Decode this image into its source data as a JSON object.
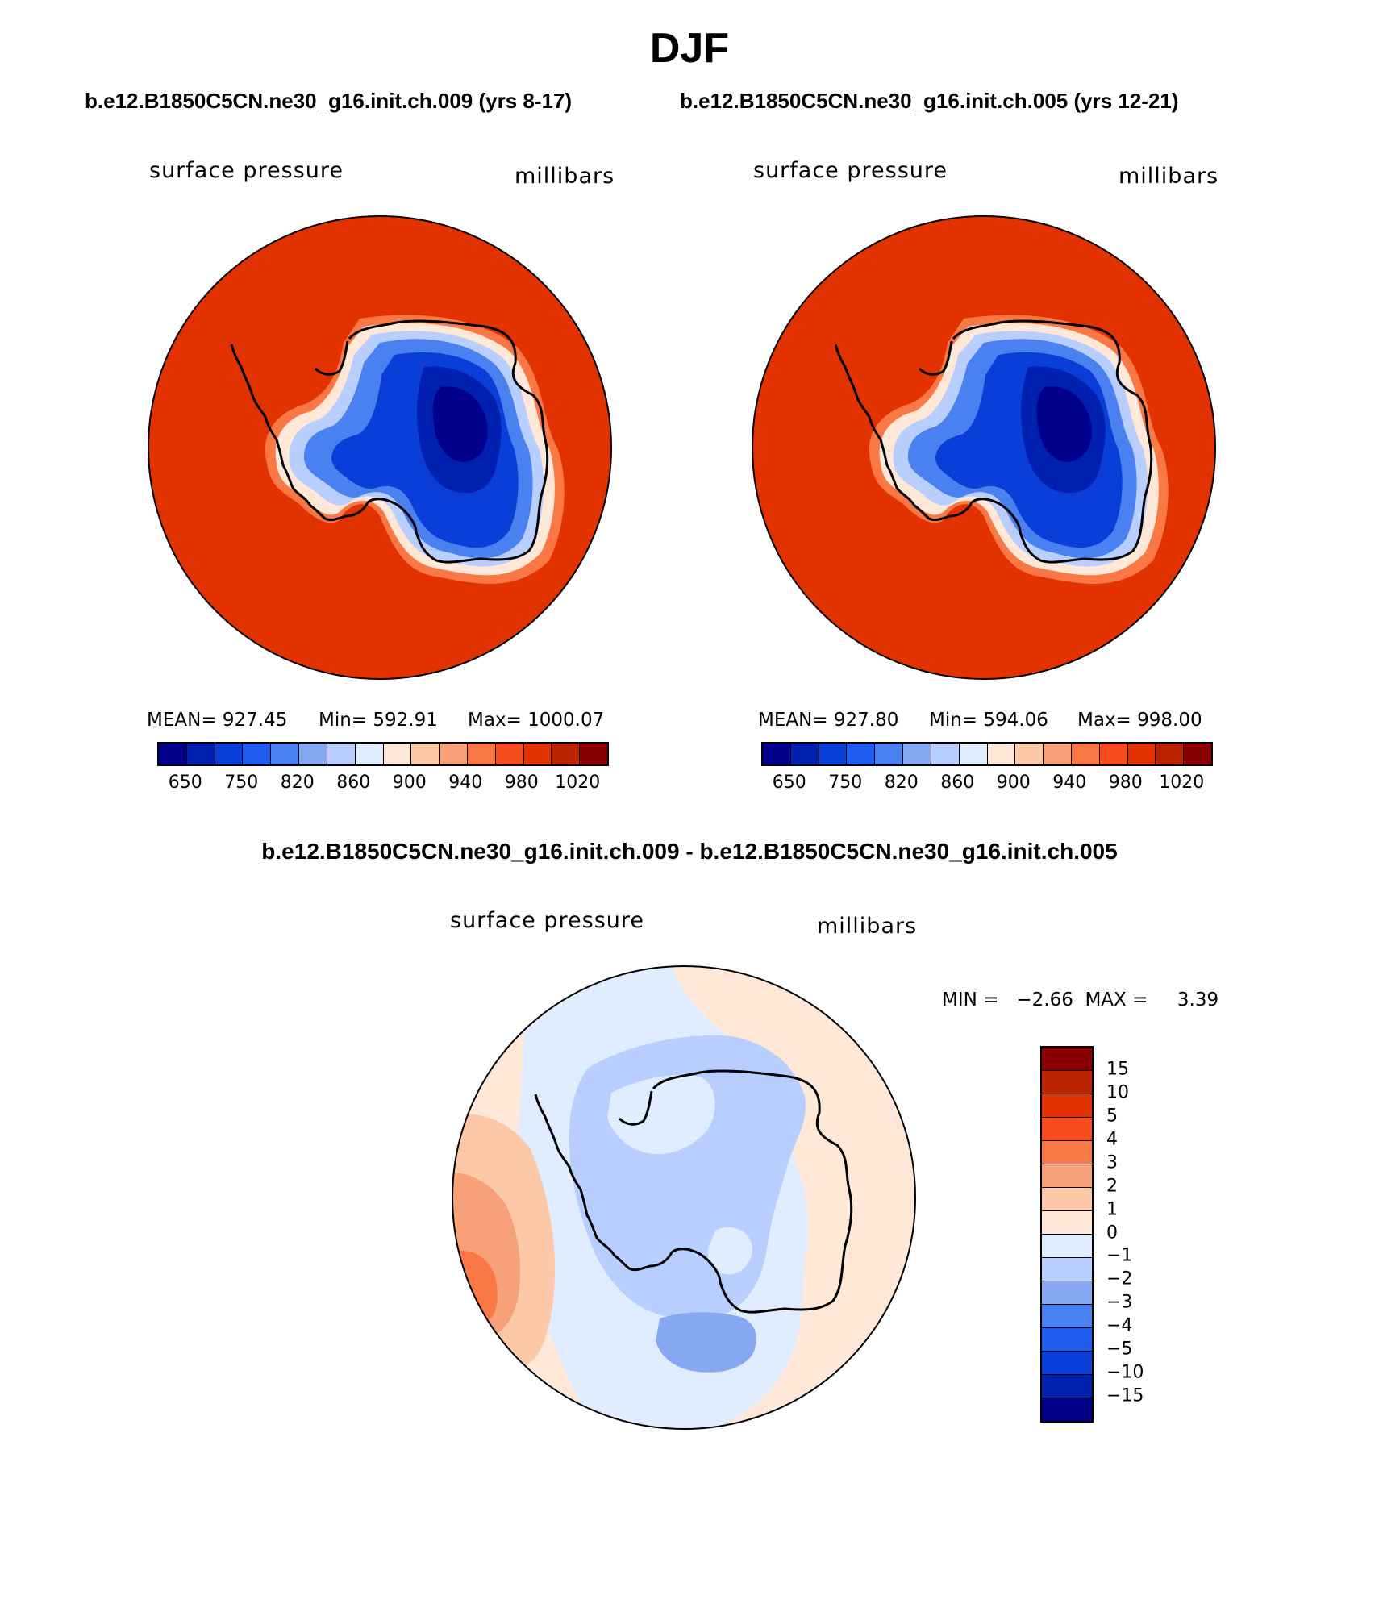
{
  "title": "DJF",
  "panel_left": {
    "case": "b.e12.B1850C5CN.ne30_g16.init.ch.009 (yrs 8-17)",
    "variable": "surface pressure",
    "units": "millibars",
    "mean_label": "MEAN= 927.45",
    "min_label": "Min= 592.91",
    "max_label": "Max= 1000.07"
  },
  "panel_right": {
    "case": "b.e12.B1850C5CN.ne30_g16.init.ch.005 (yrs 12-21)",
    "variable": "surface pressure",
    "units": "millibars",
    "mean_label": "MEAN= 927.80",
    "min_label": "Min= 594.06",
    "max_label": "Max= 998.00"
  },
  "colorbar_main": {
    "colors": [
      "#00008b",
      "#0020b0",
      "#0a3ed8",
      "#1f5cf0",
      "#4a80f0",
      "#86a8f2",
      "#b8ceff",
      "#e0ecff",
      "#ffe8d8",
      "#fcc8a8",
      "#f8a078",
      "#fa7846",
      "#f84c1e",
      "#e23200",
      "#bc2400",
      "#8a0000"
    ],
    "tick_labels": [
      "650",
      "750",
      "820",
      "860",
      "900",
      "940",
      "980",
      "1020"
    ]
  },
  "diff_panel": {
    "title": "b.e12.B1850C5CN.ne30_g16.init.ch.009 - b.e12.B1850C5CN.ne30_g16.init.ch.005",
    "variable": "surface pressure",
    "units": "millibars",
    "min_max_label": "MIN =   −2.66  MAX =     3.39"
  },
  "colorbar_diff": {
    "colors_top_to_bottom": [
      "#8a0000",
      "#bc2400",
      "#e23200",
      "#f84c1e",
      "#fa7846",
      "#f8a078",
      "#fcc8a8",
      "#ffe8d8",
      "#e0ecff",
      "#b8ceff",
      "#86a8f2",
      "#4a80f0",
      "#1f5cf0",
      "#0a3ed8",
      "#0020b0",
      "#00008b"
    ],
    "tick_labels": [
      "15",
      "10",
      "5",
      "4",
      "3",
      "2",
      "1",
      "0",
      "−1",
      "−2",
      "−3",
      "−4",
      "−5",
      "−10",
      "−15"
    ]
  }
}
